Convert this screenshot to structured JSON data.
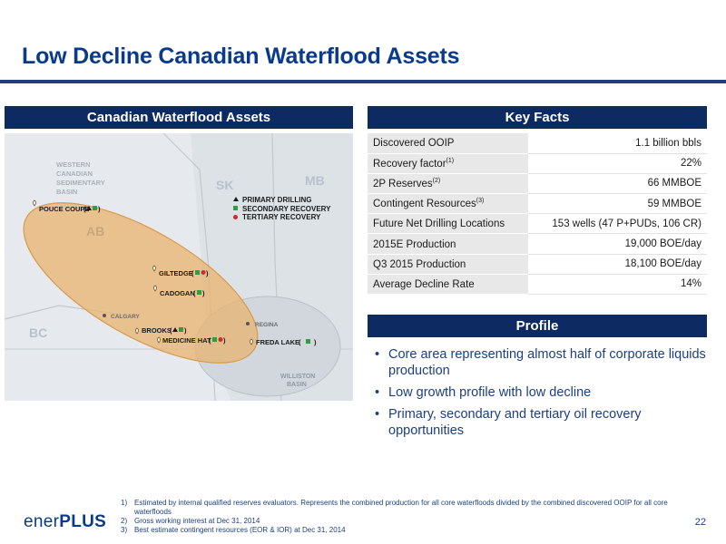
{
  "title": "Low Decline Canadian Waterflood Assets",
  "left_panel": {
    "header": "Canadian Waterflood Assets"
  },
  "map": {
    "regions": {
      "wcsb": "WESTERN CANADIAN SEDIMENTARY BASIN",
      "sk": "SK",
      "mb": "MB",
      "ab": "AB",
      "bc": "BC",
      "williston": "WILLISTON BASIN"
    },
    "cities": {
      "calgary": "CALGARY",
      "regina": "REGINA"
    },
    "legend": [
      "PRIMARY DRILLING",
      "SECONDARY RECOVERY",
      "TERTIARY RECOVERY"
    ],
    "assets": [
      "POUCE COUPE",
      "GILTEDGE",
      "CADOGAN",
      "BROOKS",
      "MEDICINE HAT",
      "FREDA LAKE"
    ],
    "colors": {
      "primary": "#1a1a1a",
      "secondary": "#2e9e3e",
      "tertiary": "#d9262b",
      "basin_fill": "#e8b573"
    }
  },
  "key_facts": {
    "header": "Key Facts",
    "rows": [
      {
        "label": "Discovered OOIP",
        "sup": "",
        "value": "1.1 billion bbls"
      },
      {
        "label": "Recovery factor",
        "sup": "(1)",
        "value": "22%"
      },
      {
        "label": "2P Reserves",
        "sup": "(2)",
        "value": "66 MMBOE"
      },
      {
        "label": "Contingent Resources",
        "sup": "(3)",
        "value": "59 MMBOE"
      },
      {
        "label": "Future Net Drilling Locations",
        "sup": "",
        "value": "153 wells (47 P+PUDs, 106 CR)"
      },
      {
        "label": "2015E Production",
        "sup": "",
        "value": "19,000 BOE/day"
      },
      {
        "label": "Q3 2015 Production",
        "sup": "",
        "value": "18,100 BOE/day"
      },
      {
        "label": "Average Decline Rate",
        "sup": "",
        "value": "14%"
      }
    ]
  },
  "profile": {
    "header": "Profile",
    "bullets": [
      "Core area representing almost half of corporate liquids production",
      "Low growth profile with low decline",
      "Primary, secondary and tertiary oil recovery opportunities"
    ]
  },
  "footnotes": [
    {
      "num": "1)",
      "text": "Estimated by internal qualified reserves evaluators. Represents the combined production for all core waterfloods divided by the combined discovered OOIP for all core waterfloods"
    },
    {
      "num": "2)",
      "text": "Gross working interest at Dec 31, 2014"
    },
    {
      "num": "3)",
      "text": "Best estimate contingent resources (EOR & IOR) at Dec 31, 2014"
    }
  ],
  "logo": {
    "text": "ener",
    "plus": "PLUS"
  },
  "page_number": "22"
}
